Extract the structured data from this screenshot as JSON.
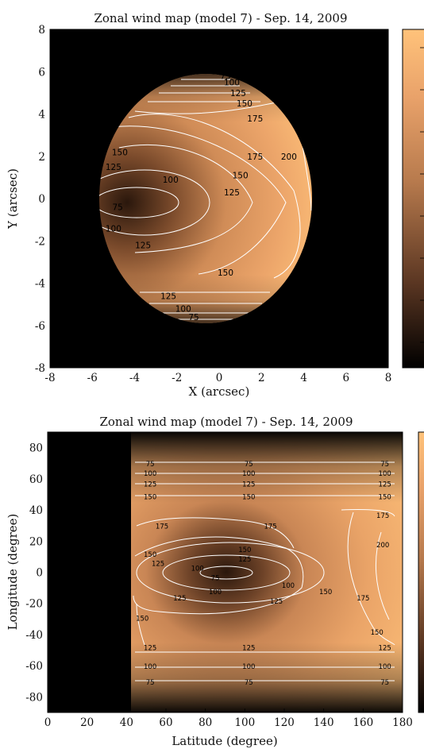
{
  "colors": {
    "background": "#000000",
    "colormap_low": "#1a0f08",
    "colormap_high": "#ffc27a",
    "contour": "#ffffff"
  },
  "chart_data": [
    {
      "type": "heatmap",
      "title": "Zonal wind map (model 7) - Sep. 14, 2009",
      "xlabel": "X (arcsec)",
      "ylabel": "Y (arcsec)",
      "xlim": [
        -8,
        8
      ],
      "ylim": [
        -8,
        8
      ],
      "x_ticks": [
        -8,
        -6,
        -4,
        -2,
        0,
        2,
        4,
        6,
        8
      ],
      "y_ticks": [
        -8,
        -6,
        -4,
        -2,
        0,
        2,
        4,
        6,
        8
      ],
      "colorbar": true,
      "contours": [
        75,
        100,
        125,
        150,
        175,
        200
      ],
      "contour_labels": [
        {
          "text": "75",
          "x": 0.3,
          "y": 5.8
        },
        {
          "text": "100",
          "x": 0.6,
          "y": 5.5
        },
        {
          "text": "125",
          "x": 0.9,
          "y": 5.0
        },
        {
          "text": "150",
          "x": 1.2,
          "y": 4.5
        },
        {
          "text": "175",
          "x": 1.7,
          "y": 3.8
        },
        {
          "text": "150",
          "x": -4.7,
          "y": 2.2
        },
        {
          "text": "125",
          "x": -5.0,
          "y": 1.5
        },
        {
          "text": "100",
          "x": -2.3,
          "y": 0.9
        },
        {
          "text": "75",
          "x": -4.8,
          "y": -0.4
        },
        {
          "text": "100",
          "x": -5.0,
          "y": -1.4
        },
        {
          "text": "125",
          "x": -3.6,
          "y": -2.2
        },
        {
          "text": "175",
          "x": 1.7,
          "y": 2.0
        },
        {
          "text": "150",
          "x": 1.0,
          "y": 1.1
        },
        {
          "text": "125",
          "x": 0.6,
          "y": 0.3
        },
        {
          "text": "200",
          "x": 3.3,
          "y": 2.0
        },
        {
          "text": "150",
          "x": 0.3,
          "y": -3.5
        },
        {
          "text": "125",
          "x": -2.4,
          "y": -4.6
        },
        {
          "text": "100",
          "x": -1.7,
          "y": -5.2
        },
        {
          "text": "75",
          "x": -1.2,
          "y": -5.6
        }
      ]
    },
    {
      "type": "heatmap",
      "title": "Zonal wind map (model 7) - Sep. 14, 2009",
      "xlabel": "Latitude (degree)",
      "ylabel": "Longitude (degree)",
      "xlim": [
        0,
        180
      ],
      "ylim": [
        -90,
        90
      ],
      "x_ticks": [
        0,
        20,
        40,
        60,
        80,
        100,
        120,
        140,
        160,
        180
      ],
      "y_ticks": [
        -80,
        -60,
        -40,
        -20,
        0,
        20,
        40,
        60,
        80
      ],
      "masked_x_below": 42,
      "colorbar": true,
      "contours": [
        75,
        100,
        125,
        150,
        175,
        200
      ],
      "contour_labels": [
        {
          "text": "75",
          "x": 52,
          "y": 70
        },
        {
          "text": "100",
          "x": 52,
          "y": 64
        },
        {
          "text": "125",
          "x": 52,
          "y": 57
        },
        {
          "text": "150",
          "x": 52,
          "y": 49
        },
        {
          "text": "75",
          "x": 102,
          "y": 70
        },
        {
          "text": "100",
          "x": 102,
          "y": 64
        },
        {
          "text": "125",
          "x": 102,
          "y": 57
        },
        {
          "text": "150",
          "x": 102,
          "y": 49
        },
        {
          "text": "75",
          "x": 171,
          "y": 70
        },
        {
          "text": "100",
          "x": 171,
          "y": 64
        },
        {
          "text": "125",
          "x": 171,
          "y": 57
        },
        {
          "text": "150",
          "x": 171,
          "y": 49
        },
        {
          "text": "175",
          "x": 170,
          "y": 37
        },
        {
          "text": "175",
          "x": 58,
          "y": 30
        },
        {
          "text": "175",
          "x": 113,
          "y": 30
        },
        {
          "text": "150",
          "x": 100,
          "y": 15
        },
        {
          "text": "125",
          "x": 100,
          "y": 9
        },
        {
          "text": "150",
          "x": 52,
          "y": 12
        },
        {
          "text": "125",
          "x": 56,
          "y": 6
        },
        {
          "text": "100",
          "x": 76,
          "y": 3
        },
        {
          "text": "75",
          "x": 85,
          "y": -3
        },
        {
          "text": "100",
          "x": 85,
          "y": -12
        },
        {
          "text": "125",
          "x": 67,
          "y": -16
        },
        {
          "text": "100",
          "x": 122,
          "y": -8
        },
        {
          "text": "125",
          "x": 116,
          "y": -18
        },
        {
          "text": "150",
          "x": 141,
          "y": -12
        },
        {
          "text": "175",
          "x": 160,
          "y": -16
        },
        {
          "text": "200",
          "x": 170,
          "y": 18
        },
        {
          "text": "150",
          "x": 48,
          "y": -29
        },
        {
          "text": "150",
          "x": 167,
          "y": -38
        },
        {
          "text": "125",
          "x": 52,
          "y": -48
        },
        {
          "text": "100",
          "x": 52,
          "y": -60
        },
        {
          "text": "75",
          "x": 52,
          "y": -70
        },
        {
          "text": "125",
          "x": 102,
          "y": -48
        },
        {
          "text": "100",
          "x": 102,
          "y": -60
        },
        {
          "text": "75",
          "x": 102,
          "y": -70
        },
        {
          "text": "125",
          "x": 171,
          "y": -48
        },
        {
          "text": "100",
          "x": 171,
          "y": -60
        },
        {
          "text": "75",
          "x": 171,
          "y": -70
        }
      ]
    }
  ]
}
